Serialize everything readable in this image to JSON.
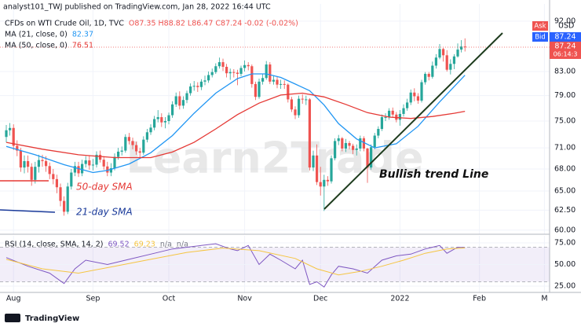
{
  "header": {
    "publisher": "analyst101_TWJ published on TradingView.com, Jan 28, 2022 16:44 UTC",
    "symbol": "CFDs on WTI Crude Oil, 1D, TVC",
    "ohlc": "O87.35 H88.82 L86.47 C87.24 -0.02 (-0.02%)"
  },
  "watermark": "Learn2Trade",
  "annotations": {
    "trend": "Bullish trend Line",
    "sma50": "50-day SMA",
    "sma21": "21-day SMA"
  },
  "quote": {
    "ask_label": "Ask",
    "currency": "USD",
    "bid_label": "Bid",
    "bid": 87.24,
    "countdown": "06:14:3"
  },
  "footer": "TradingView",
  "chart_data": [
    {
      "type": "candlestick",
      "log_scale": true,
      "grid": true,
      "up_color": "#26a69a",
      "down_color": "#ef5350",
      "last_price": 87.24,
      "xlim": [
        -1.74,
        150.43
      ],
      "xticks": [
        {
          "value": 2,
          "label": "Aug"
        },
        {
          "value": 24,
          "label": "Sep"
        },
        {
          "value": 45,
          "label": "Oct"
        },
        {
          "value": 66,
          "label": "Nov"
        },
        {
          "value": 87,
          "label": "Dec"
        },
        {
          "value": 109,
          "label": "2022"
        },
        {
          "value": 131,
          "label": "Feb"
        },
        {
          "value": 149,
          "label": "M"
        }
      ],
      "ylim": [
        59.5,
        95.3
      ],
      "yticks": [
        {
          "value": 92,
          "label": "92.00"
        },
        {
          "value": 83,
          "label": "83.00"
        },
        {
          "value": 79,
          "label": "79.00"
        },
        {
          "value": 75,
          "label": "75.00"
        },
        {
          "value": 71,
          "label": "71.00"
        },
        {
          "value": 68,
          "label": "68.00"
        },
        {
          "value": 65,
          "label": "65.00"
        },
        {
          "value": 62.5,
          "label": "62.50"
        },
        {
          "value": 60,
          "label": "60.00"
        }
      ],
      "open": [
        72.6,
        73.6,
        73.95,
        71.3,
        70.6,
        68.2,
        69.1,
        68.3,
        66.5,
        68.3,
        69.25,
        69.1,
        68.4,
        67.3,
        66.6,
        65.5,
        63.7,
        62.3,
        65.6,
        67.5,
        68.4,
        67.4,
        68.7,
        69.2,
        68.5,
        68.6,
        70.0,
        69.3,
        68.35,
        67.5,
        68.1,
        69.7,
        70.45,
        70.6,
        72.6,
        72.0,
        71.4,
        70.5,
        70.3,
        72.2,
        73.3,
        74.0,
        75.3,
        75.6,
        74.8,
        75.0,
        75.9,
        77.6,
        78.9,
        77.4,
        78.3,
        79.4,
        80.5,
        80.6,
        80.4,
        81.3,
        81.5,
        82.4,
        82.9,
        83.9,
        84.6,
        83.8,
        82.7,
        82.9,
        82.8,
        82.6,
        83.6,
        84.1,
        83.9,
        80.9,
        78.8,
        81.3,
        81.9,
        84.2,
        81.3,
        81.6,
        80.8,
        80.9,
        80.8,
        78.4,
        76.8,
        75.9,
        78.5,
        78.4,
        78.4,
        68.2,
        69.9,
        66.2,
        65.6,
        66.5,
        66.3,
        69.5,
        72.0,
        72.4,
        70.9,
        71.7,
        71.3,
        70.7,
        70.9,
        72.4,
        70.9,
        68.2,
        71.1,
        72.8,
        73.8,
        75.6,
        75.6,
        76.6,
        76.0,
        75.2,
        76.1,
        77.0,
        77.9,
        79.5,
        78.9,
        78.2,
        81.2,
        82.6,
        82.1,
        84.0,
        85.4,
        86.9,
        85.8,
        83.3,
        84.3,
        85.6,
        86.8,
        87.35
      ],
      "high": [
        74.4,
        74.7,
        74.5,
        72.1,
        71.0,
        69.9,
        69.9,
        68.8,
        69.0,
        70.0,
        70.0,
        69.8,
        68.9,
        68.0,
        67.2,
        66.0,
        64.3,
        66.1,
        68.0,
        69.0,
        69.0,
        69.3,
        69.8,
        69.9,
        69.4,
        70.5,
        70.6,
        69.8,
        69.0,
        68.8,
        70.2,
        71.0,
        71.2,
        73.0,
        73.2,
        72.5,
        71.9,
        71.0,
        72.7,
        73.8,
        74.5,
        75.8,
        76.7,
        76.2,
        75.6,
        76.3,
        78.1,
        79.5,
        79.7,
        78.9,
        79.8,
        81.0,
        81.4,
        81.2,
        81.7,
        82.3,
        83.0,
        83.5,
        84.4,
        85.4,
        85.2,
        84.3,
        83.5,
        83.4,
        83.3,
        84.0,
        84.9,
        84.6,
        84.2,
        81.3,
        81.8,
        82.6,
        84.8,
        84.6,
        82.3,
        82.1,
        81.6,
        81.5,
        81.0,
        78.8,
        77.3,
        79.0,
        79.2,
        79.0,
        78.6,
        70.6,
        71.5,
        68.3,
        67.2,
        67.0,
        69.9,
        72.4,
        72.9,
        72.6,
        72.3,
        72.0,
        71.6,
        71.5,
        72.8,
        72.7,
        71.0,
        71.5,
        73.2,
        74.2,
        76.0,
        76.2,
        77.0,
        77.1,
        76.4,
        76.7,
        77.6,
        78.5,
        80.0,
        80.2,
        79.4,
        81.6,
        82.9,
        82.9,
        84.7,
        86.0,
        87.8,
        87.1,
        86.7,
        85.1,
        86.0,
        87.9,
        88.5,
        88.82
      ],
      "low": [
        71.8,
        72.8,
        70.7,
        69.8,
        67.6,
        67.4,
        67.5,
        65.7,
        66.0,
        67.5,
        68.3,
        67.6,
        66.6,
        65.9,
        64.7,
        63.0,
        61.8,
        62.0,
        65.2,
        67.0,
        66.9,
        67.0,
        68.2,
        67.9,
        67.8,
        68.2,
        68.9,
        67.9,
        67.0,
        67.0,
        67.8,
        69.3,
        69.9,
        70.3,
        71.5,
        70.8,
        70.0,
        69.6,
        70.0,
        71.8,
        72.9,
        73.6,
        74.8,
        74.1,
        73.9,
        74.5,
        75.5,
        77.2,
        76.8,
        76.9,
        77.8,
        79.0,
        79.8,
        79.6,
        79.9,
        80.7,
        81.1,
        82.0,
        82.6,
        83.5,
        83.1,
        82.0,
        81.6,
        82.0,
        80.7,
        82.2,
        83.0,
        83.2,
        80.3,
        78.3,
        78.5,
        80.8,
        81.6,
        80.9,
        80.8,
        80.2,
        80.1,
        80.1,
        77.9,
        76.4,
        75.3,
        75.5,
        77.7,
        77.5,
        67.8,
        67.7,
        65.8,
        64.4,
        62.4,
        65.7,
        66.0,
        69.2,
        71.4,
        70.5,
        70.4,
        70.8,
        70.1,
        69.9,
        70.5,
        70.5,
        66.1,
        67.9,
        70.8,
        72.4,
        73.5,
        75.0,
        75.2,
        75.5,
        74.8,
        74.3,
        75.7,
        76.6,
        77.5,
        78.1,
        77.7,
        77.9,
        80.8,
        81.5,
        81.8,
        83.5,
        85.1,
        84.7,
        83.0,
        82.5,
        83.4,
        85.4,
        86.3,
        86.47
      ],
      "close": [
        73.6,
        73.95,
        71.3,
        70.6,
        68.2,
        69.1,
        68.3,
        66.5,
        68.3,
        69.25,
        69.1,
        68.4,
        67.3,
        66.6,
        65.5,
        63.7,
        62.3,
        65.6,
        67.5,
        68.4,
        67.4,
        68.7,
        69.2,
        68.5,
        68.6,
        70.0,
        69.3,
        68.35,
        67.5,
        68.1,
        69.7,
        70.45,
        70.6,
        72.6,
        72.0,
        71.4,
        70.5,
        70.3,
        72.2,
        73.3,
        74.0,
        75.3,
        75.6,
        74.8,
        75.0,
        75.9,
        77.6,
        78.9,
        77.4,
        78.3,
        79.4,
        80.5,
        80.6,
        80.4,
        81.3,
        81.5,
        82.4,
        82.9,
        83.9,
        84.6,
        83.8,
        82.7,
        82.9,
        82.8,
        82.6,
        83.6,
        84.1,
        83.9,
        80.9,
        78.8,
        81.3,
        81.9,
        84.2,
        81.3,
        81.6,
        80.8,
        80.9,
        80.8,
        78.4,
        76.8,
        75.9,
        78.5,
        78.4,
        78.4,
        68.2,
        69.9,
        66.2,
        65.6,
        66.5,
        66.3,
        69.5,
        72.0,
        72.4,
        70.9,
        71.7,
        71.3,
        70.7,
        70.9,
        72.4,
        70.9,
        68.2,
        71.1,
        72.8,
        73.8,
        75.6,
        75.6,
        76.6,
        76.0,
        75.2,
        76.1,
        77.0,
        77.9,
        79.5,
        78.9,
        78.2,
        81.2,
        82.6,
        82.1,
        84.0,
        85.4,
        86.9,
        85.8,
        83.3,
        84.3,
        85.6,
        86.8,
        87.35,
        87.24
      ],
      "series": [
        {
          "name": "MA (21, close, 0)",
          "color": "#2196f3",
          "last": 82.37,
          "x": [
            0,
            8,
            16,
            24,
            28,
            34,
            40,
            46,
            52,
            58,
            64,
            68,
            72,
            76,
            80,
            84,
            88,
            92,
            97,
            102,
            108,
            114,
            120,
            127
          ],
          "values": [
            71.2,
            70.0,
            68.6,
            67.5,
            67.8,
            68.7,
            70.3,
            72.8,
            76.2,
            79.4,
            81.8,
            82.6,
            82.6,
            82.0,
            80.9,
            79.8,
            77.5,
            74.6,
            72.3,
            71.0,
            71.6,
            74.2,
            78.0,
            82.37
          ]
        },
        {
          "name": "MA (50, close, 0)",
          "color": "#e53935",
          "last": 76.51,
          "x": [
            0,
            10,
            20,
            30,
            40,
            46,
            52,
            58,
            64,
            70,
            76,
            82,
            88,
            94,
            100,
            106,
            112,
            118,
            124,
            127
          ],
          "values": [
            71.8,
            70.8,
            70.0,
            69.6,
            69.6,
            70.4,
            71.8,
            73.8,
            76.0,
            77.8,
            79.1,
            79.4,
            78.8,
            77.6,
            76.3,
            75.6,
            75.4,
            75.7,
            76.2,
            76.51
          ]
        }
      ]
    },
    {
      "type": "line",
      "title": "RSI (14, close, SMA, 14, 2)",
      "grid": true,
      "band": true,
      "levels": [
        70,
        50,
        30
      ],
      "xlim": [
        -1.74,
        150.43
      ],
      "ylim": [
        17.7,
        83.2
      ],
      "yticks": [
        {
          "value": 75,
          "label": "75.00"
        },
        {
          "value": 50,
          "label": "50.00"
        },
        {
          "value": 25,
          "label": "25.00"
        }
      ],
      "na_labels": [
        "n/a",
        "n/a"
      ],
      "series": [
        {
          "color": "#7e57c2",
          "last": 69.52,
          "x": [
            0,
            6,
            12,
            16,
            19,
            22,
            28,
            34,
            40,
            46,
            50,
            54,
            58,
            62,
            64,
            67,
            70,
            73,
            76,
            80,
            82,
            84,
            86,
            88,
            90,
            92,
            96,
            100,
            104,
            108,
            112,
            116,
            118,
            120,
            122,
            125,
            127
          ],
          "values": [
            58,
            48,
            40,
            28,
            45,
            55,
            50,
            56,
            62,
            68,
            70,
            72,
            74,
            68,
            66,
            72,
            50,
            62,
            55,
            45,
            55,
            27,
            30,
            24,
            38,
            48,
            45,
            40,
            55,
            60,
            62,
            68,
            70,
            72,
            63,
            70,
            69.52
          ]
        },
        {
          "color": "#f5c542",
          "last": 69.23,
          "x": [
            0,
            10,
            20,
            30,
            40,
            50,
            60,
            70,
            80,
            86,
            92,
            98,
            104,
            110,
            116,
            122,
            127
          ],
          "values": [
            56,
            45,
            40,
            48,
            56,
            64,
            69,
            66,
            57,
            45,
            38,
            42,
            48,
            55,
            63,
            68,
            69.23
          ]
        }
      ]
    }
  ]
}
